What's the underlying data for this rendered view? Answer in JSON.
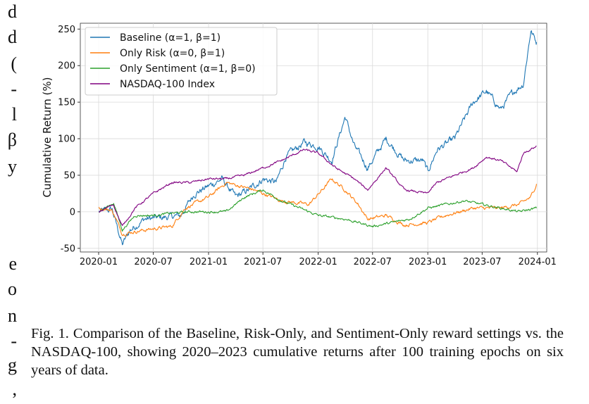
{
  "margin_text": [
    "d",
    "d",
    "(",
    "-",
    "l",
    "β",
    "y",
    "",
    "",
    "e",
    "o",
    "n",
    "-",
    "g",
    ","
  ],
  "caption": "Fig. 1.  Comparison of the Baseline, Risk-Only, and Sentiment-Only reward settings vs. the NASDAQ-100, showing 2020–2023 cumulative returns after 100 training epochs on six years of data.",
  "chart_data": {
    "type": "line",
    "title": "",
    "xlabel": "",
    "ylabel": "Cumulative Return (%)",
    "ylim": [
      -55,
      258
    ],
    "yticks": [
      -50,
      0,
      50,
      100,
      150,
      200,
      250
    ],
    "xticks": [
      "2020-01",
      "2020-07",
      "2021-01",
      "2021-07",
      "2022-01",
      "2022-07",
      "2023-01",
      "2023-07",
      "2024-01"
    ],
    "xlim": [
      "2019-11-01",
      "2024-02-01"
    ],
    "grid": true,
    "legend": "upper-left",
    "series": [
      {
        "name": "Baseline (α=1, β=1)",
        "color": "#1f77b4",
        "points": [
          [
            "2020-01-02",
            0
          ],
          [
            "2020-02-15",
            3
          ],
          [
            "2020-03-20",
            -45
          ],
          [
            "2020-04-15",
            -25
          ],
          [
            "2020-06-01",
            -10
          ],
          [
            "2020-08-01",
            -8
          ],
          [
            "2020-10-01",
            -5
          ],
          [
            "2020-11-15",
            25
          ],
          [
            "2021-01-01",
            35
          ],
          [
            "2021-02-15",
            45
          ],
          [
            "2021-04-01",
            20
          ],
          [
            "2021-05-15",
            30
          ],
          [
            "2021-07-01",
            45
          ],
          [
            "2021-08-15",
            40
          ],
          [
            "2021-09-15",
            75
          ],
          [
            "2021-11-15",
            95
          ],
          [
            "2022-01-01",
            90
          ],
          [
            "2022-02-15",
            70
          ],
          [
            "2022-04-01",
            130
          ],
          [
            "2022-05-01",
            90
          ],
          [
            "2022-06-15",
            60
          ],
          [
            "2022-08-15",
            100
          ],
          [
            "2022-10-15",
            70
          ],
          [
            "2022-12-15",
            70
          ],
          [
            "2023-01-01",
            55
          ],
          [
            "2023-02-01",
            85
          ],
          [
            "2023-04-01",
            100
          ],
          [
            "2023-06-01",
            150
          ],
          [
            "2023-07-15",
            165
          ],
          [
            "2023-09-01",
            140
          ],
          [
            "2023-10-15",
            165
          ],
          [
            "2023-11-15",
            175
          ],
          [
            "2023-12-10",
            248
          ],
          [
            "2023-12-29",
            232
          ]
        ]
      },
      {
        "name": "Only Risk (α=0, β=1)",
        "color": "#ff7f0e",
        "points": [
          [
            "2020-01-02",
            5
          ],
          [
            "2020-02-15",
            2
          ],
          [
            "2020-03-20",
            -30
          ],
          [
            "2020-06-01",
            -25
          ],
          [
            "2020-09-01",
            -20
          ],
          [
            "2020-10-15",
            5
          ],
          [
            "2021-01-01",
            20
          ],
          [
            "2021-03-01",
            40
          ],
          [
            "2021-06-01",
            30
          ],
          [
            "2021-09-01",
            15
          ],
          [
            "2021-12-01",
            10
          ],
          [
            "2022-01-15",
            30
          ],
          [
            "2022-02-15",
            45
          ],
          [
            "2022-04-01",
            30
          ],
          [
            "2022-05-15",
            10
          ],
          [
            "2022-06-15",
            -10
          ],
          [
            "2022-08-15",
            -5
          ],
          [
            "2022-10-15",
            -18
          ],
          [
            "2023-01-01",
            -15
          ],
          [
            "2023-03-01",
            -5
          ],
          [
            "2023-06-01",
            5
          ],
          [
            "2023-09-01",
            5
          ],
          [
            "2023-11-01",
            10
          ],
          [
            "2023-12-10",
            20
          ],
          [
            "2023-12-29",
            38
          ]
        ]
      },
      {
        "name": "Only Sentiment (α=1, β=0)",
        "color": "#2ca02c",
        "points": [
          [
            "2020-01-02",
            0
          ],
          [
            "2020-02-20",
            12
          ],
          [
            "2020-03-20",
            -25
          ],
          [
            "2020-05-01",
            -5
          ],
          [
            "2020-07-01",
            -5
          ],
          [
            "2020-09-01",
            -2
          ],
          [
            "2020-11-01",
            0
          ],
          [
            "2021-01-01",
            0
          ],
          [
            "2021-03-01",
            0
          ],
          [
            "2021-05-01",
            20
          ],
          [
            "2021-07-01",
            30
          ],
          [
            "2021-09-01",
            15
          ],
          [
            "2021-11-01",
            5
          ],
          [
            "2022-01-01",
            -5
          ],
          [
            "2022-04-01",
            -10
          ],
          [
            "2022-07-01",
            -20
          ],
          [
            "2022-09-01",
            -15
          ],
          [
            "2022-11-01",
            -10
          ],
          [
            "2023-01-01",
            5
          ],
          [
            "2023-03-01",
            10
          ],
          [
            "2023-05-01",
            15
          ],
          [
            "2023-07-01",
            10
          ],
          [
            "2023-09-01",
            5
          ],
          [
            "2023-11-01",
            0
          ],
          [
            "2023-12-29",
            5
          ]
        ]
      },
      {
        "name": "NASDAQ-100 Index",
        "color": "#800080",
        "points": [
          [
            "2020-01-02",
            0
          ],
          [
            "2020-02-19",
            10
          ],
          [
            "2020-03-20",
            -20
          ],
          [
            "2020-05-01",
            5
          ],
          [
            "2020-07-01",
            25
          ],
          [
            "2020-09-01",
            40
          ],
          [
            "2020-11-01",
            40
          ],
          [
            "2021-01-01",
            45
          ],
          [
            "2021-03-01",
            45
          ],
          [
            "2021-05-01",
            50
          ],
          [
            "2021-07-01",
            60
          ],
          [
            "2021-09-01",
            70
          ],
          [
            "2021-11-15",
            85
          ],
          [
            "2022-01-01",
            80
          ],
          [
            "2022-03-01",
            60
          ],
          [
            "2022-05-01",
            45
          ],
          [
            "2022-06-15",
            30
          ],
          [
            "2022-08-15",
            60
          ],
          [
            "2022-10-15",
            30
          ],
          [
            "2022-12-30",
            25
          ],
          [
            "2023-02-01",
            40
          ],
          [
            "2023-04-01",
            50
          ],
          [
            "2023-06-01",
            60
          ],
          [
            "2023-07-15",
            75
          ],
          [
            "2023-09-01",
            70
          ],
          [
            "2023-10-25",
            55
          ],
          [
            "2023-11-15",
            80
          ],
          [
            "2023-12-29",
            90
          ]
        ]
      }
    ]
  }
}
